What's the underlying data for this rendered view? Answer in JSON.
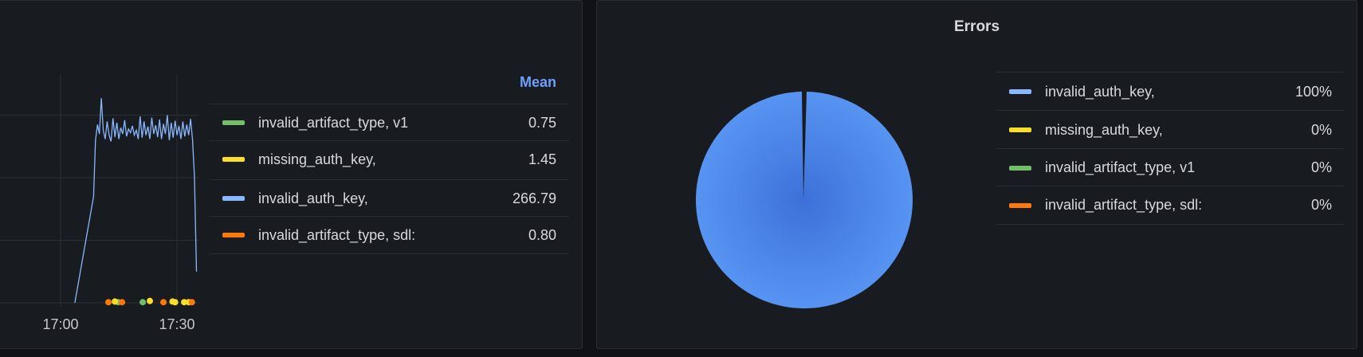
{
  "chart_data": [
    {
      "type": "line",
      "xlabel": "",
      "ylabel": "",
      "x_ticks": [
        "17:00",
        "17:30"
      ],
      "ylim": [
        0,
        358
      ],
      "y_grid": [
        0,
        100,
        200,
        300
      ],
      "grid": true,
      "legend_placement": "right",
      "legend_header": "Mean",
      "series": [
        {
          "name": "invalid_artifact_type, v1",
          "color": "#73bf69",
          "mean": "0.75",
          "style": "points",
          "x": [
            "17:14:50",
            "17:21:10"
          ],
          "y": [
            1,
            1
          ]
        },
        {
          "name": "missing_auth_key,",
          "color": "#fade2a",
          "mean": "1.45",
          "style": "points",
          "x": [
            "17:14:00",
            "17:23:00",
            "17:28:50",
            "17:29:30",
            "17:31:50",
            "17:33:00"
          ],
          "y": [
            2,
            3,
            2,
            1,
            1,
            1
          ]
        },
        {
          "name": "invalid_auth_key,",
          "color": "#8ab8ff",
          "mean": "266.79",
          "style": "line",
          "x": [
            "17:03:40",
            "17:08:30",
            "17:09:00",
            "17:09:30",
            "17:10:00",
            "17:10:30",
            "17:11:00",
            "17:11:30",
            "17:12:00",
            "17:12:30",
            "17:13:00",
            "17:13:30",
            "17:14:00",
            "17:14:30",
            "17:15:00",
            "17:15:30",
            "17:16:00",
            "17:16:30",
            "17:17:00",
            "17:17:30",
            "17:18:00",
            "17:18:30",
            "17:19:00",
            "17:19:30",
            "17:20:00",
            "17:20:30",
            "17:21:00",
            "17:21:30",
            "17:22:00",
            "17:22:30",
            "17:23:00",
            "17:23:30",
            "17:24:00",
            "17:24:30",
            "17:25:00",
            "17:25:30",
            "17:26:00",
            "17:26:30",
            "17:27:00",
            "17:27:30",
            "17:28:00",
            "17:28:30",
            "17:29:00",
            "17:29:30",
            "17:30:00",
            "17:30:30",
            "17:31:00",
            "17:31:30",
            "17:32:00",
            "17:32:30",
            "17:33:00",
            "17:33:30",
            "17:34:00",
            "17:34:30",
            "17:35:00"
          ],
          "y": [
            0,
            170,
            260,
            285,
            270,
            327,
            275,
            262,
            290,
            268,
            258,
            295,
            265,
            288,
            262,
            280,
            270,
            292,
            266,
            278,
            272,
            283,
            268,
            276,
            262,
            298,
            264,
            290,
            268,
            282,
            262,
            296,
            270,
            284,
            265,
            293,
            262,
            286,
            270,
            300,
            260,
            288,
            264,
            291,
            268,
            283,
            262,
            290,
            266,
            285,
            268,
            294,
            260,
            200,
            50
          ]
        },
        {
          "name": "invalid_artifact_type, sdl:",
          "color": "#ff780a",
          "mean": "0.80",
          "style": "points",
          "x": [
            "17:12:20",
            "17:15:50",
            "17:26:30",
            "17:33:50"
          ],
          "y": [
            1,
            1,
            1,
            1
          ]
        }
      ]
    },
    {
      "type": "pie",
      "title": "Errors",
      "legend_placement": "right",
      "series": [
        {
          "name": "invalid_auth_key,",
          "value": "100%",
          "color": "#5794f2"
        },
        {
          "name": "missing_auth_key,",
          "value": "0%",
          "color": "#fade2a"
        },
        {
          "name": "invalid_artifact_type, v1",
          "value": "0%",
          "color": "#73bf69"
        },
        {
          "name": "invalid_artifact_type, sdl:",
          "value": "0%",
          "color": "#ff780a"
        }
      ]
    }
  ]
}
